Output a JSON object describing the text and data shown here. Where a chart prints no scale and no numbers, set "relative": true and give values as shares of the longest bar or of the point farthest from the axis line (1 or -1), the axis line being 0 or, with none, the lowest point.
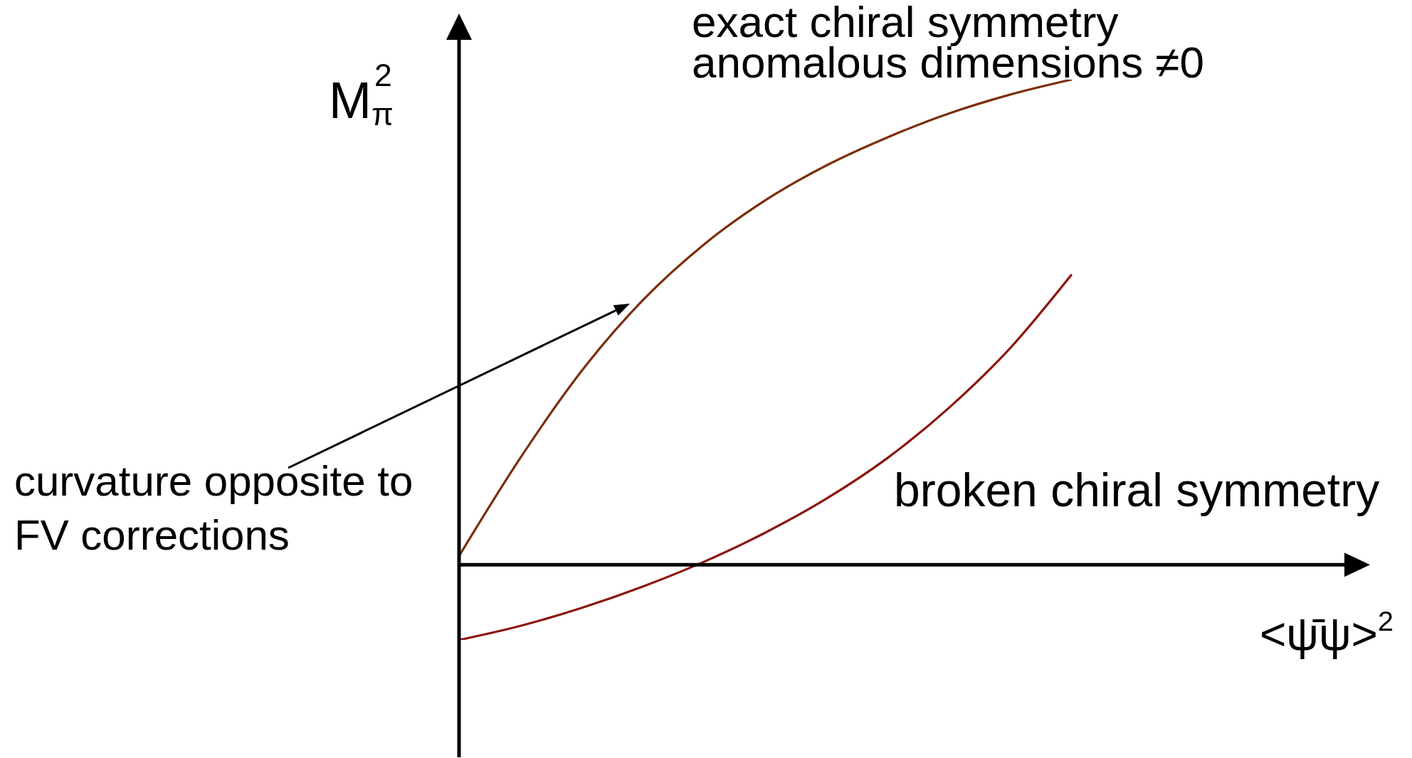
{
  "chart_data": {
    "type": "line",
    "relative": true,
    "xlabel": "<ψ̄ψ>$^{2}$",
    "ylabel": "M$_{π}$$^{2}$",
    "categories": [
      null,
      null,
      null,
      null,
      null,
      null,
      null,
      null,
      null,
      null,
      null
    ],
    "series": [
      {
        "name": "exact chiral symmetry\nanomalous dimensions ≠0",
        "color": "#7b2f0b",
        "values": [
          0.018,
          0.22,
          0.399,
          0.545,
          0.66,
          0.751,
          0.823,
          0.881,
          0.93,
          0.969,
          1
        ]
      },
      {
        "name": "broken chiral symmetry",
        "color": "#8a150d",
        "values": [
          -0.155,
          -0.126,
          -0.089,
          -0.045,
          0.006,
          0.066,
          0.136,
          0.22,
          0.323,
          0.446,
          0.597
        ]
      }
    ],
    "annotations": [
      "curvature opposite to\nFV corrections"
    ],
    "marker": "none",
    "line_style": "solid"
  }
}
